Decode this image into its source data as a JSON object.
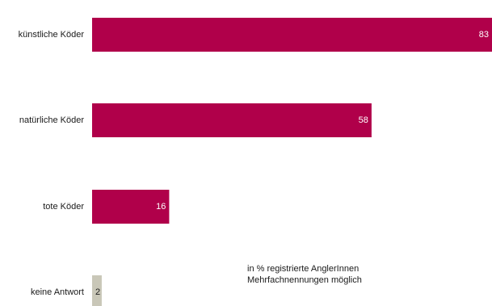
{
  "chart_data": {
    "type": "bar",
    "orientation": "horizontal",
    "categories": [
      "künstliche Köder",
      "natürliche Köder",
      "tote Köder",
      "keine Antwort"
    ],
    "values": [
      83,
      58,
      16,
      2
    ],
    "value_labels": [
      "83",
      "58",
      "16",
      "2"
    ],
    "colors": [
      "#b0004a",
      "#b0004a",
      "#b0004a",
      "#c9c7b8"
    ],
    "xlim": [
      0,
      83
    ],
    "grid": false,
    "legend": "none"
  },
  "note": {
    "line1": "in % registrierte AnglerInnen",
    "line2": "Mehrfachnennungen möglich"
  },
  "colors": {
    "primary": "#b0004a",
    "no_answer": "#c9c7b8"
  }
}
